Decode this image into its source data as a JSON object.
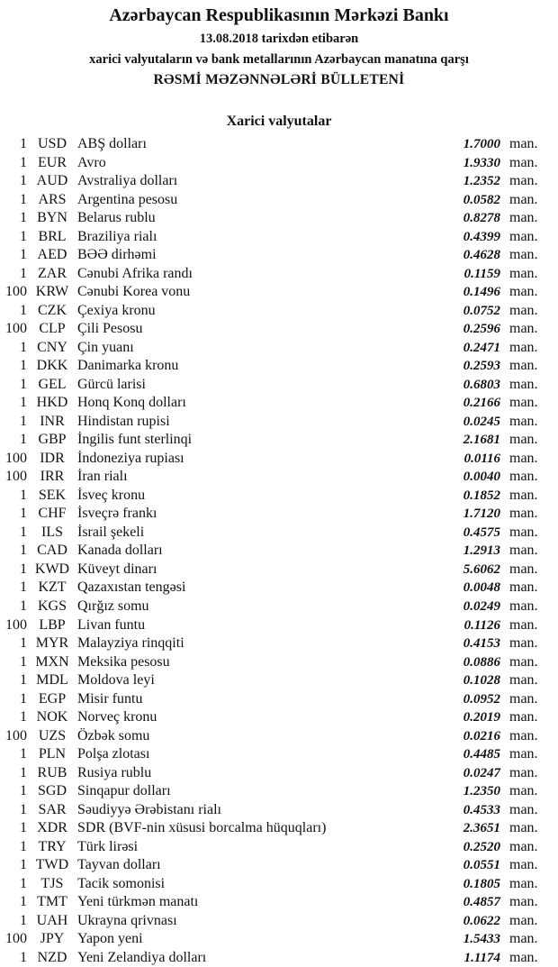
{
  "header": {
    "title": "Azərbaycan Respublikasının Mərkəzi Bankı",
    "date_line": "13.08.2018  tarixdən etibarən",
    "subtitle": "xarici valyutaların və bank metallarının Azərbaycan manatına qarşı",
    "bulletin": "RƏSMİ MƏZƏNNƏLƏRİ BÜLLETENİ"
  },
  "section_title": "Xarici valyutalar",
  "unit_label": "man.",
  "rates": [
    {
      "nominal": "1",
      "code": "USD",
      "name": "ABŞ dolları",
      "rate": "1.7000"
    },
    {
      "nominal": "1",
      "code": "EUR",
      "name": "Avro",
      "rate": "1.9330"
    },
    {
      "nominal": "1",
      "code": "AUD",
      "name": "Avstraliya dolları",
      "rate": "1.2352"
    },
    {
      "nominal": "1",
      "code": "ARS",
      "name": "Argentina pesosu",
      "rate": "0.0582"
    },
    {
      "nominal": "1",
      "code": "BYN",
      "name": "Belarus rublu",
      "rate": "0.8278"
    },
    {
      "nominal": "1",
      "code": "BRL",
      "name": "Braziliya rialı",
      "rate": "0.4399"
    },
    {
      "nominal": "1",
      "code": "AED",
      "name": "BƏƏ dirhəmi",
      "rate": "0.4628"
    },
    {
      "nominal": "1",
      "code": "ZAR",
      "name": "Cənubi Afrika randı",
      "rate": "0.1159"
    },
    {
      "nominal": "100",
      "code": "KRW",
      "name": "Cənubi Korea vonu",
      "rate": "0.1496"
    },
    {
      "nominal": "1",
      "code": "CZK",
      "name": "Çexiya kronu",
      "rate": "0.0752"
    },
    {
      "nominal": "100",
      "code": "CLP",
      "name": "Çili Pesosu",
      "rate": "0.2596"
    },
    {
      "nominal": "1",
      "code": "CNY",
      "name": "Çin yuanı",
      "rate": "0.2471"
    },
    {
      "nominal": "1",
      "code": "DKK",
      "name": "Danimarka kronu",
      "rate": "0.2593"
    },
    {
      "nominal": "1",
      "code": "GEL",
      "name": "Gürcü larisi",
      "rate": "0.6803"
    },
    {
      "nominal": "1",
      "code": "HKD",
      "name": "Honq Konq dolları",
      "rate": "0.2166"
    },
    {
      "nominal": "1",
      "code": "INR",
      "name": "Hindistan rupisi",
      "rate": "0.0245"
    },
    {
      "nominal": "1",
      "code": "GBP",
      "name": "İngilis funt sterlinqi",
      "rate": "2.1681"
    },
    {
      "nominal": "100",
      "code": "IDR",
      "name": "İndoneziya rupiası",
      "rate": "0.0116"
    },
    {
      "nominal": "100",
      "code": "IRR",
      "name": "İran rialı",
      "rate": "0.0040"
    },
    {
      "nominal": "1",
      "code": "SEK",
      "name": "İsveç kronu",
      "rate": "0.1852"
    },
    {
      "nominal": "1",
      "code": "CHF",
      "name": "İsveçrə frankı",
      "rate": "1.7120"
    },
    {
      "nominal": "1",
      "code": "ILS",
      "name": "İsrail şekeli",
      "rate": "0.4575"
    },
    {
      "nominal": "1",
      "code": "CAD",
      "name": "Kanada dolları",
      "rate": "1.2913"
    },
    {
      "nominal": "1",
      "code": "KWD",
      "name": "Küveyt dinarı",
      "rate": "5.6062"
    },
    {
      "nominal": "1",
      "code": "KZT",
      "name": "Qazaxıstan tengəsi",
      "rate": "0.0048"
    },
    {
      "nominal": "1",
      "code": "KGS",
      "name": "Qırğız somu",
      "rate": "0.0249"
    },
    {
      "nominal": "100",
      "code": "LBP",
      "name": "Livan funtu",
      "rate": "0.1126"
    },
    {
      "nominal": "1",
      "code": "MYR",
      "name": "Malayziya rinqqiti",
      "rate": "0.4153"
    },
    {
      "nominal": "1",
      "code": "MXN",
      "name": "Meksika pesosu",
      "rate": "0.0886"
    },
    {
      "nominal": "1",
      "code": "MDL",
      "name": "Moldova leyi",
      "rate": "0.1028"
    },
    {
      "nominal": "1",
      "code": "EGP",
      "name": "Misir funtu",
      "rate": "0.0952"
    },
    {
      "nominal": "1",
      "code": "NOK",
      "name": "Norveç kronu",
      "rate": "0.2019"
    },
    {
      "nominal": "100",
      "code": "UZS",
      "name": "Özbək somu",
      "rate": "0.0216"
    },
    {
      "nominal": "1",
      "code": "PLN",
      "name": "Polşa zlotası",
      "rate": "0.4485"
    },
    {
      "nominal": "1",
      "code": "RUB",
      "name": "Rusiya rublu",
      "rate": "0.0247"
    },
    {
      "nominal": "1",
      "code": "SGD",
      "name": "Sinqapur dolları",
      "rate": "1.2350"
    },
    {
      "nominal": "1",
      "code": "SAR",
      "name": "Səudiyyə Ərəbistanı rialı",
      "rate": "0.4533"
    },
    {
      "nominal": "1",
      "code": "XDR",
      "name": "SDR (BVF-nin xüsusi borcalma hüquqları)",
      "rate": "2.3651"
    },
    {
      "nominal": "1",
      "code": "TRY",
      "name": "Türk lirəsi",
      "rate": "0.2520"
    },
    {
      "nominal": "1",
      "code": "TWD",
      "name": "Tayvan dolları",
      "rate": "0.0551"
    },
    {
      "nominal": "1",
      "code": "TJS",
      "name": "Tacik somonisi",
      "rate": "0.1805"
    },
    {
      "nominal": "1",
      "code": "TMT",
      "name": "Yeni türkmən manatı",
      "rate": "0.4857"
    },
    {
      "nominal": "1",
      "code": "UAH",
      "name": "Ukrayna qrivnası",
      "rate": "0.0622"
    },
    {
      "nominal": "100",
      "code": "JPY",
      "name": "Yapon yeni",
      "rate": "1.5433"
    },
    {
      "nominal": "1",
      "code": "NZD",
      "name": "Yeni Zelandiya dolları",
      "rate": "1.1174"
    }
  ]
}
